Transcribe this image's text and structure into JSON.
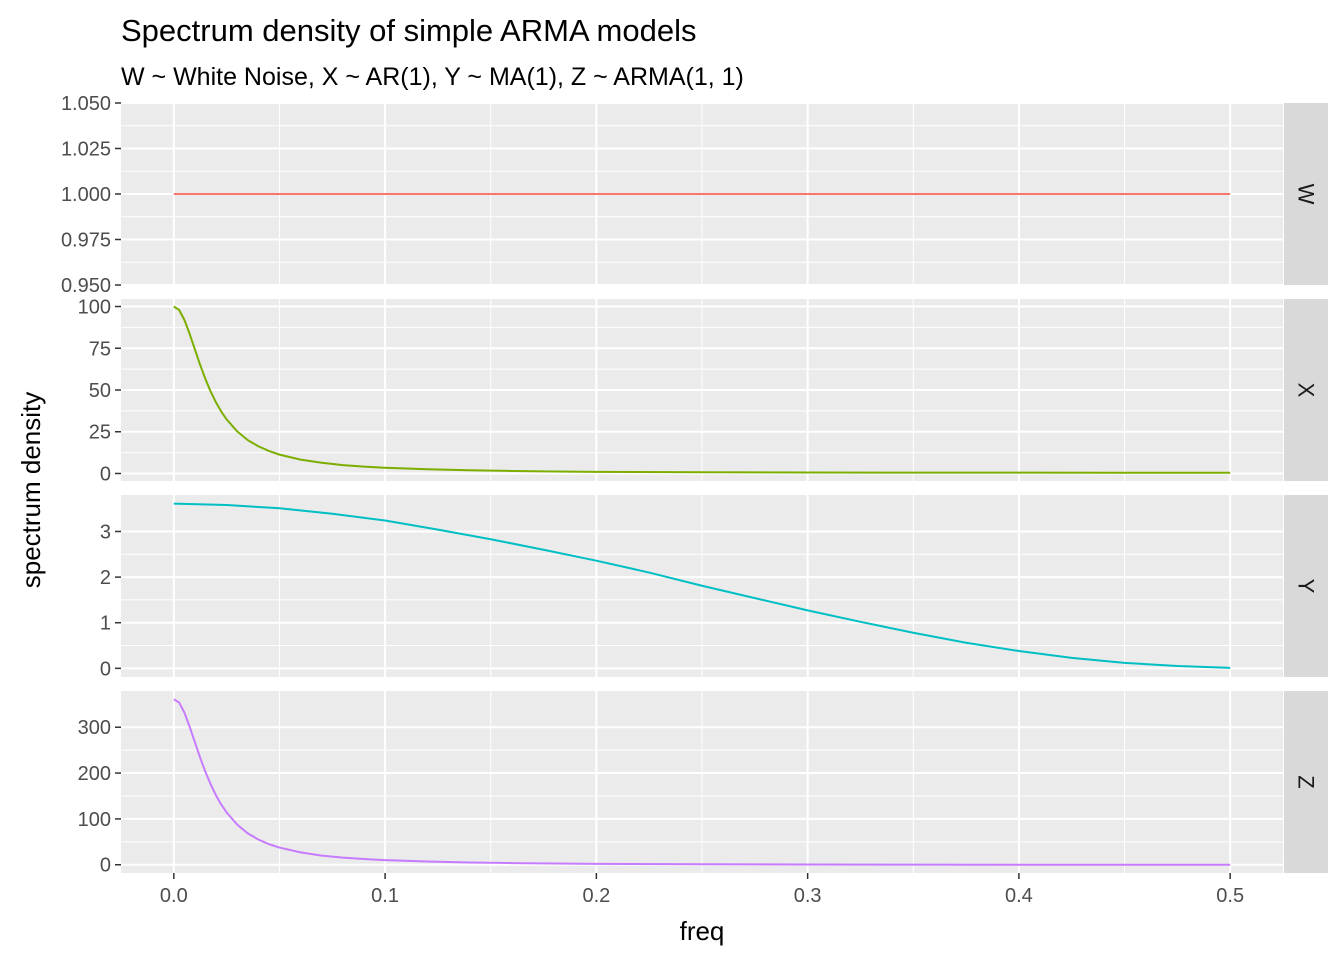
{
  "chart_data": {
    "type": "line",
    "title": "Spectrum density of simple ARMA models",
    "subtitle": "W ~ White Noise, X ~ AR(1), Y ~ MA(1), Z ~ ARMA(1, 1)",
    "xlabel": "freq",
    "ylabel": "spectrum density",
    "xlim": [
      -0.025,
      0.525
    ],
    "x_ticks": [
      0.0,
      0.1,
      0.2,
      0.3,
      0.4,
      0.5
    ],
    "x_tick_labels": [
      "0.0",
      "0.1",
      "0.2",
      "0.3",
      "0.4",
      "0.5"
    ],
    "grid": true,
    "legend": "none",
    "facets": [
      {
        "strip": "W",
        "color": "#F8766D",
        "ylim": [
          0.95,
          1.05
        ],
        "y_ticks": [
          0.95,
          0.975,
          1.0,
          1.025,
          1.05
        ],
        "y_tick_labels": [
          "0.950",
          "0.975",
          "1.000",
          "1.025",
          "1.050"
        ],
        "series": {
          "x": [
            0.0,
            0.1,
            0.2,
            0.3,
            0.4,
            0.5
          ],
          "y": [
            1.0,
            1.0,
            1.0,
            1.0,
            1.0,
            1.0
          ]
        }
      },
      {
        "strip": "X",
        "color": "#7CAE00",
        "ylim": [
          -4.5,
          104.5
        ],
        "y_ticks": [
          0,
          25,
          50,
          75,
          100
        ],
        "y_tick_labels": [
          "0",
          "25",
          "50",
          "75",
          "100"
        ],
        "series": {
          "x": [
            0.0,
            0.0025,
            0.005,
            0.0075,
            0.01,
            0.0125,
            0.015,
            0.0175,
            0.02,
            0.0225,
            0.025,
            0.03,
            0.035,
            0.04,
            0.045,
            0.05,
            0.06,
            0.07,
            0.08,
            0.09,
            0.1,
            0.12,
            0.14,
            0.16,
            0.18,
            0.2,
            0.25,
            0.3,
            0.35,
            0.4,
            0.45,
            0.5
          ],
          "y": [
            100.0,
            98.0,
            92.0,
            83.6,
            74.2,
            64.9,
            56.4,
            48.9,
            42.5,
            37.0,
            32.4,
            25.2,
            20.0,
            16.3,
            13.5,
            11.3,
            8.3,
            6.4,
            5.0,
            4.1,
            3.4,
            2.5,
            1.9,
            1.5,
            1.2,
            1.0,
            0.75,
            0.61,
            0.53,
            0.48,
            0.46,
            0.45
          ]
        }
      },
      {
        "strip": "Y",
        "color": "#00BFC4",
        "ylim": [
          -0.19,
          3.8
        ],
        "y_ticks": [
          0,
          1,
          2,
          3
        ],
        "y_tick_labels": [
          "0",
          "1",
          "2",
          "3"
        ],
        "series": {
          "x": [
            0.0,
            0.025,
            0.05,
            0.075,
            0.1,
            0.125,
            0.15,
            0.175,
            0.2,
            0.225,
            0.25,
            0.275,
            0.3,
            0.325,
            0.35,
            0.375,
            0.4,
            0.425,
            0.45,
            0.475,
            0.5
          ],
          "y": [
            3.61,
            3.58,
            3.51,
            3.39,
            3.24,
            3.04,
            2.83,
            2.6,
            2.36,
            2.1,
            1.81,
            1.54,
            1.27,
            1.02,
            0.78,
            0.56,
            0.38,
            0.23,
            0.12,
            0.05,
            0.01
          ]
        }
      },
      {
        "strip": "Z",
        "color": "#C77CFF",
        "ylim": [
          -18,
          379
        ],
        "y_ticks": [
          0,
          100,
          200,
          300
        ],
        "y_tick_labels": [
          "0",
          "100",
          "200",
          "300"
        ],
        "series": {
          "x": [
            0.0,
            0.0025,
            0.005,
            0.0075,
            0.01,
            0.0125,
            0.015,
            0.0175,
            0.02,
            0.0225,
            0.025,
            0.03,
            0.035,
            0.04,
            0.045,
            0.05,
            0.06,
            0.07,
            0.08,
            0.09,
            0.1,
            0.12,
            0.14,
            0.16,
            0.18,
            0.2,
            0.25,
            0.3,
            0.35,
            0.4,
            0.45,
            0.5
          ],
          "y": [
            361.0,
            354.0,
            332.0,
            301.0,
            267.0,
            233.0,
            202.0,
            175.0,
            151.0,
            131.0,
            114.0,
            87.5,
            68.5,
            55.0,
            45.0,
            37.5,
            27.0,
            20.0,
            15.5,
            12.5,
            10.0,
            7.0,
            5.0,
            3.6,
            2.7,
            2.0,
            1.0,
            0.5,
            0.25,
            0.12,
            0.06,
            0.04
          ]
        }
      }
    ]
  }
}
